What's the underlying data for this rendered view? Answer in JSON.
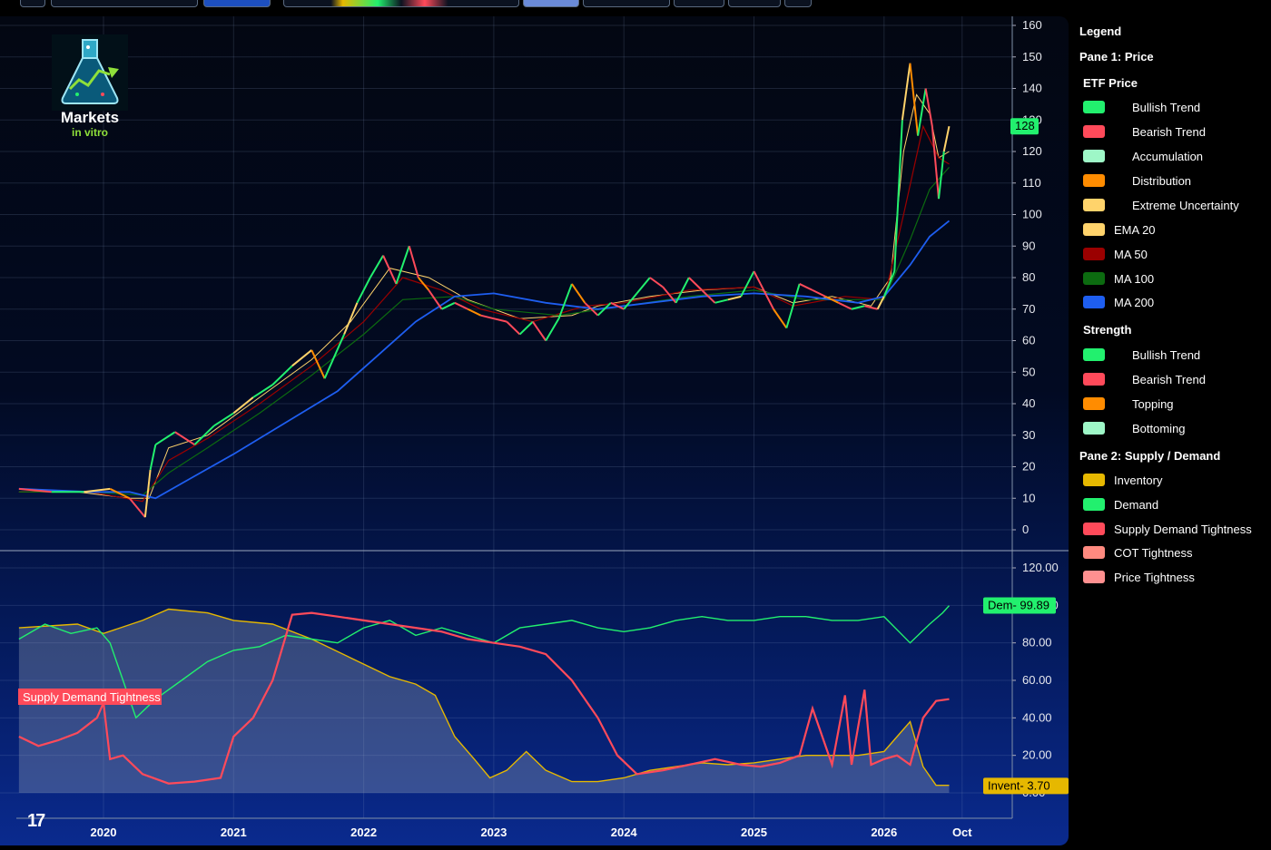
{
  "legend": {
    "title": "Legend",
    "pane1": "Pane 1: Price",
    "etf_price": "ETF Price",
    "etf_items": [
      {
        "label": "Bullish Trend",
        "color": "#22f06e"
      },
      {
        "label": "Bearish Trend",
        "color": "#ff4a5a"
      },
      {
        "label": "Accumulation",
        "color": "#9ef7c7"
      },
      {
        "label": "Distribution",
        "color": "#ff8c00"
      },
      {
        "label": "Extreme Uncertainty",
        "color": "#ffd36b"
      }
    ],
    "ma_items": [
      {
        "label": "EMA 20",
        "color": "#ffd36b"
      },
      {
        "label": "MA 50",
        "color": "#9b0000"
      },
      {
        "label": "MA 100",
        "color": "#0c6b10"
      },
      {
        "label": "MA 200",
        "color": "#1e5ef0"
      }
    ],
    "strength": "Strength",
    "strength_items": [
      {
        "label": "Bullish Trend",
        "color": "#22f06e"
      },
      {
        "label": "Bearish Trend",
        "color": "#ff4a5a"
      },
      {
        "label": "Topping",
        "color": "#ff8c00"
      },
      {
        "label": "Bottoming",
        "color": "#9ef7c7"
      }
    ],
    "pane2": "Pane 2: Supply / Demand",
    "pane2_items": [
      {
        "label": "Inventory",
        "color": "#e6b800"
      },
      {
        "label": "Demand",
        "color": "#22f06e"
      },
      {
        "label": "Supply Demand Tightness",
        "color": "#ff4a5a"
      },
      {
        "label": "COT Tightness",
        "color": "#ff8a80"
      },
      {
        "label": "Price Tightness",
        "color": "#ff9090"
      }
    ]
  },
  "logo": {
    "line1": "Markets",
    "line2": "in vitro"
  },
  "branding": {
    "tv": "17"
  },
  "chart_data": [
    {
      "type": "line",
      "pane": "Price",
      "ylim": [
        0,
        160
      ],
      "y_ticks": [
        "0",
        "10",
        "20",
        "30",
        "40",
        "50",
        "60",
        "70",
        "80",
        "90",
        "100",
        "110",
        "120",
        "130",
        "140",
        "150",
        "160"
      ],
      "x_ticks": [
        "2020",
        "2021",
        "2022",
        "2023",
        "2024",
        "2025",
        "2026",
        "Oct"
      ],
      "last_price_label": "128",
      "grid": true,
      "series": [
        {
          "name": "ETF Price",
          "x": [
            2019.35,
            2019.6,
            2019.85,
            2020.05,
            2020.2,
            2020.32,
            2020.36,
            2020.4,
            2020.55,
            2020.7,
            2020.85,
            2021.0,
            2021.15,
            2021.3,
            2021.45,
            2021.6,
            2021.7,
            2021.85,
            2021.95,
            2022.05,
            2022.15,
            2022.25,
            2022.35,
            2022.42,
            2022.5,
            2022.6,
            2022.7,
            2022.8,
            2022.9,
            2023.0,
            2023.1,
            2023.2,
            2023.3,
            2023.4,
            2023.5,
            2023.6,
            2023.7,
            2023.8,
            2023.9,
            2024.0,
            2024.1,
            2024.2,
            2024.3,
            2024.4,
            2024.5,
            2024.6,
            2024.7,
            2024.8,
            2024.9,
            2025.0,
            2025.05,
            2025.15,
            2025.25,
            2025.35,
            2025.45,
            2025.55,
            2025.65,
            2025.75,
            2025.85,
            2025.95,
            2026.0,
            2026.08,
            2026.14,
            2026.2,
            2026.26,
            2026.32,
            2026.37,
            2026.42,
            2026.46,
            2026.5
          ],
          "values": [
            13,
            12,
            12,
            13,
            10,
            4,
            19,
            27,
            31,
            27,
            33,
            37,
            42,
            46,
            52,
            57,
            48,
            62,
            72,
            80,
            87,
            78,
            90,
            80,
            76,
            70,
            72,
            70,
            68,
            67,
            66,
            62,
            66,
            60,
            67,
            78,
            72,
            68,
            72,
            70,
            75,
            80,
            77,
            72,
            80,
            76,
            72,
            73,
            74,
            82,
            78,
            70,
            64,
            78,
            76,
            74,
            72,
            70,
            71,
            70,
            74,
            82,
            130,
            148,
            125,
            140,
            128,
            105,
            120,
            128
          ]
        },
        {
          "name": "EMA 20",
          "x": [
            2019.35,
            2019.8,
            2020.2,
            2020.35,
            2020.5,
            2020.8,
            2021.2,
            2021.6,
            2021.9,
            2022.2,
            2022.5,
            2022.8,
            2023.2,
            2023.6,
            2023.8,
            2024.2,
            2024.6,
            2025.0,
            2025.3,
            2025.6,
            2025.9,
            2026.05,
            2026.15,
            2026.25,
            2026.35,
            2026.42,
            2026.5
          ],
          "values": [
            12,
            12,
            10,
            10,
            26,
            30,
            42,
            54,
            66,
            83,
            80,
            73,
            67,
            68,
            71,
            74,
            76,
            77,
            72,
            74,
            71,
            80,
            120,
            138,
            132,
            118,
            120
          ]
        },
        {
          "name": "MA 50",
          "x": [
            2019.35,
            2019.9,
            2020.3,
            2020.5,
            2020.8,
            2021.2,
            2021.6,
            2022.0,
            2022.3,
            2022.6,
            2022.9,
            2023.3,
            2023.7,
            2024.0,
            2024.5,
            2025.0,
            2025.3,
            2025.7,
            2026.0,
            2026.15,
            2026.3,
            2026.42,
            2026.5
          ],
          "values": [
            12,
            12,
            9,
            22,
            29,
            40,
            52,
            66,
            80,
            76,
            70,
            66,
            71,
            72,
            76,
            77,
            71,
            74,
            73,
            100,
            128,
            118,
            116
          ]
        },
        {
          "name": "MA 100",
          "x": [
            2019.35,
            2019.9,
            2020.3,
            2020.5,
            2020.8,
            2021.2,
            2021.6,
            2022.0,
            2022.3,
            2022.7,
            2023.0,
            2023.5,
            2024.0,
            2024.5,
            2025.0,
            2025.4,
            2025.8,
            2026.0,
            2026.2,
            2026.35,
            2026.5
          ],
          "values": [
            12,
            12,
            11,
            18,
            26,
            37,
            49,
            62,
            73,
            74,
            70,
            68,
            71,
            74,
            76,
            73,
            73,
            73,
            92,
            108,
            115
          ]
        },
        {
          "name": "MA 200",
          "x": [
            2019.35,
            2019.9,
            2020.2,
            2020.4,
            2020.7,
            2021.0,
            2021.4,
            2021.8,
            2022.1,
            2022.4,
            2022.7,
            2023.0,
            2023.4,
            2023.8,
            2024.2,
            2024.6,
            2025.0,
            2025.4,
            2025.8,
            2026.0,
            2026.2,
            2026.35,
            2026.5
          ],
          "values": [
            13,
            12,
            12,
            10,
            17,
            24,
            34,
            44,
            55,
            66,
            74,
            75,
            72,
            70,
            72,
            74,
            75,
            74,
            72,
            74,
            84,
            93,
            98
          ]
        }
      ]
    },
    {
      "type": "area",
      "pane": "Supply / Demand",
      "ylim": [
        0,
        120
      ],
      "y_ticks": [
        "0.00",
        "20.00",
        "40.00",
        "60.00",
        "80.00",
        "100.00",
        "120.00"
      ],
      "x_ticks": [
        "2020",
        "2021",
        "2022",
        "2023",
        "2024",
        "2025",
        "2026",
        "Oct"
      ],
      "grid": true,
      "annotation": "Supply Demand Tightness",
      "last_labels": [
        {
          "series": "Demand",
          "label": "Dem- 99.89"
        },
        {
          "series": "Inventory",
          "label": "Invent- 3.70"
        }
      ],
      "series": [
        {
          "name": "Inventory",
          "x": [
            2019.35,
            2019.8,
            2020.0,
            2020.3,
            2020.5,
            2020.8,
            2021.0,
            2021.3,
            2021.6,
            2021.9,
            2022.2,
            2022.4,
            2022.55,
            2022.7,
            2022.85,
            2022.97,
            2023.1,
            2023.25,
            2023.4,
            2023.6,
            2023.8,
            2024.0,
            2024.2,
            2024.4,
            2024.6,
            2024.8,
            2025.0,
            2025.2,
            2025.4,
            2025.6,
            2025.8,
            2026.0,
            2026.1,
            2026.2,
            2026.3,
            2026.4,
            2026.5
          ],
          "values": [
            88,
            90,
            85,
            92,
            98,
            96,
            92,
            90,
            82,
            72,
            62,
            58,
            52,
            30,
            18,
            8,
            12,
            22,
            12,
            6,
            6,
            8,
            12,
            14,
            16,
            15,
            16,
            18,
            20,
            20,
            20,
            22,
            30,
            38,
            14,
            4,
            4
          ]
        },
        {
          "name": "Demand",
          "x": [
            2019.35,
            2019.55,
            2019.75,
            2019.95,
            2020.05,
            2020.25,
            2020.4,
            2020.6,
            2020.8,
            2021.0,
            2021.2,
            2021.4,
            2021.6,
            2021.8,
            2022.0,
            2022.2,
            2022.4,
            2022.6,
            2022.8,
            2023.0,
            2023.2,
            2023.4,
            2023.6,
            2023.8,
            2024.0,
            2024.2,
            2024.4,
            2024.6,
            2024.8,
            2025.0,
            2025.2,
            2025.4,
            2025.6,
            2025.8,
            2026.0,
            2026.2,
            2026.35,
            2026.45,
            2026.5
          ],
          "values": [
            82,
            90,
            85,
            88,
            80,
            40,
            50,
            60,
            70,
            76,
            78,
            84,
            82,
            80,
            88,
            92,
            84,
            88,
            84,
            80,
            88,
            90,
            92,
            88,
            86,
            88,
            92,
            94,
            92,
            92,
            94,
            94,
            92,
            92,
            94,
            80,
            90,
            96,
            99.89
          ]
        },
        {
          "name": "Supply Demand Tightness",
          "x": [
            2019.35,
            2019.5,
            2019.65,
            2019.8,
            2019.95,
            2020.0,
            2020.05,
            2020.15,
            2020.3,
            2020.5,
            2020.7,
            2020.9,
            2021.0,
            2021.15,
            2021.3,
            2021.45,
            2021.6,
            2021.8,
            2022.0,
            2022.2,
            2022.4,
            2022.6,
            2022.8,
            2023.0,
            2023.2,
            2023.4,
            2023.6,
            2023.8,
            2023.95,
            2024.1,
            2024.3,
            2024.5,
            2024.7,
            2024.9,
            2025.05,
            2025.2,
            2025.35,
            2025.45,
            2025.6,
            2025.7,
            2025.75,
            2025.85,
            2025.9,
            2026.0,
            2026.1,
            2026.2,
            2026.3,
            2026.4,
            2026.5
          ],
          "values": [
            30,
            25,
            28,
            32,
            40,
            48,
            18,
            20,
            10,
            5,
            6,
            8,
            30,
            40,
            60,
            95,
            96,
            94,
            92,
            90,
            88,
            86,
            82,
            80,
            78,
            74,
            60,
            40,
            20,
            10,
            12,
            15,
            18,
            15,
            14,
            16,
            20,
            45,
            15,
            52,
            15,
            55,
            15,
            18,
            20,
            15,
            40,
            49,
            50
          ]
        }
      ]
    }
  ]
}
